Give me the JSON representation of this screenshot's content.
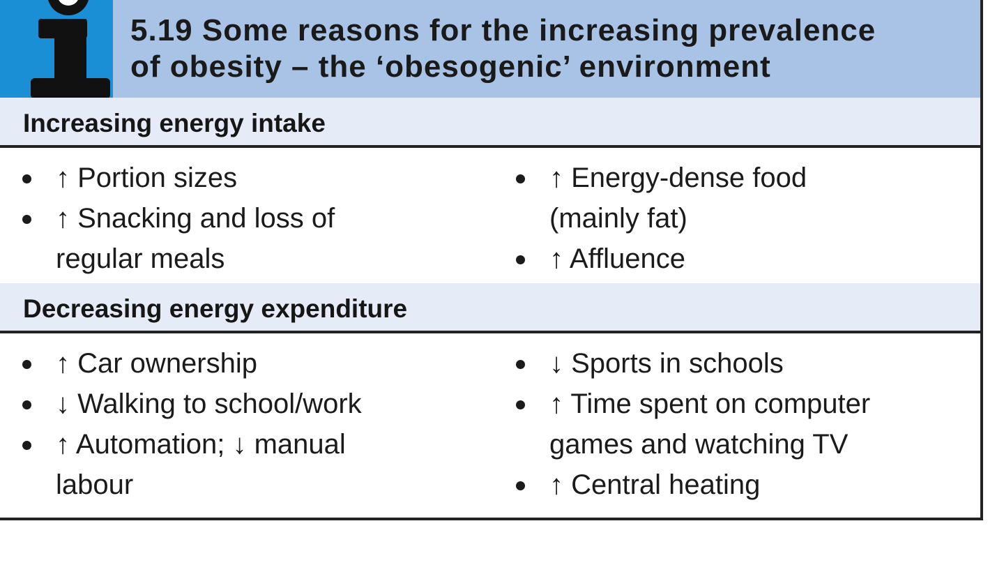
{
  "header": {
    "title_line1": "5.19  Some reasons for the increasing prevalence",
    "title_line2": "of obesity – the ‘obesogenic’ environment",
    "icon": "info-icon",
    "accent_color": "#1a8fd6",
    "header_color": "#a9c3e6"
  },
  "sections": [
    {
      "heading": "Increasing energy intake",
      "left": [
        {
          "line1": "↑ Portion sizes",
          "line2": ""
        },
        {
          "line1": "↑ Snacking and loss of",
          "line2": "regular meals"
        }
      ],
      "right": [
        {
          "line1": "↑ Energy-dense food",
          "line2": "(mainly fat)"
        },
        {
          "line1": "↑ Affluence",
          "line2": ""
        }
      ]
    },
    {
      "heading": "Decreasing energy expenditure",
      "left": [
        {
          "line1": "↑ Car ownership",
          "line2": ""
        },
        {
          "line1": "↓ Walking to school/work",
          "line2": ""
        },
        {
          "line1": "↑ Automation; ↓ manual",
          "line2": "labour"
        }
      ],
      "right": [
        {
          "line1": "↓ Sports in schools",
          "line2": ""
        },
        {
          "line1": "↑ Time spent on computer",
          "line2": "games and watching TV"
        },
        {
          "line1": "↑ Central heating",
          "line2": ""
        }
      ]
    }
  ]
}
